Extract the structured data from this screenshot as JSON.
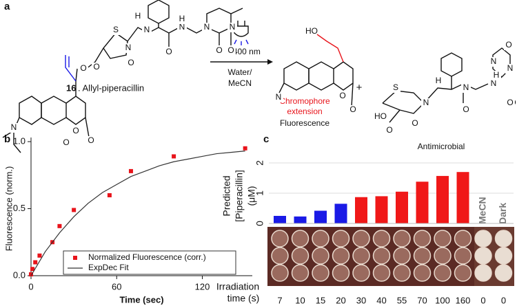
{
  "panels": [
    "a",
    "b",
    "c"
  ],
  "scheme": {
    "reactant_number": "16",
    "reactant_name": ". Allyl-piperacillin",
    "light": "λ = 400 nm",
    "solvent": [
      "Water/",
      "MeCN"
    ],
    "plus": "+",
    "product1_labels": [
      "Chromophore",
      "extension",
      "Fluorescence"
    ],
    "product2_label": "Antimicrobial",
    "reactant_atoms": [
      "S",
      "N",
      "O",
      "H",
      "N",
      "O",
      "N",
      "H",
      "O",
      "N",
      "N",
      "O",
      "O",
      "O",
      "O",
      "N",
      "O",
      "O"
    ],
    "product1_atoms": [
      "HO",
      "N",
      "O",
      "O"
    ],
    "product2_atoms": [
      "S",
      "N",
      "O",
      "HO",
      "O",
      "H",
      "N",
      "O",
      "N",
      "H",
      "O",
      "N",
      "N",
      "O",
      "O"
    ]
  },
  "chart_data": [
    {
      "type": "scatter",
      "xlabel": "Time (sec)",
      "ylabel": "Fluorescence (norm.)",
      "xlim": [
        0,
        155
      ],
      "ylim": [
        0,
        1
      ],
      "xticks": [
        0,
        60,
        120
      ],
      "yticks": [
        {
          "value": 0,
          "label": "0.0"
        },
        0.5,
        {
          "value": 1,
          "label": "1.0"
        }
      ],
      "legend": "lower right",
      "series": [
        {
          "name": "Normalized Fluorescence (corr.)",
          "color": "#e8141b",
          "type": "scatter",
          "x": [
            0,
            1,
            3,
            6,
            15,
            20,
            30,
            55,
            70,
            100,
            150
          ],
          "values": [
            0.01,
            0.05,
            0.1,
            0.15,
            0.25,
            0.37,
            0.49,
            0.6,
            0.78,
            0.89,
            0.95
          ]
        },
        {
          "name": "ExpDec Fit",
          "color": "#333333",
          "type": "line",
          "x": [
            0,
            10,
            20,
            30,
            40,
            50,
            60,
            70,
            80,
            90,
            100,
            110,
            120,
            130,
            140,
            150
          ],
          "values": [
            0,
            0.18,
            0.32,
            0.44,
            0.54,
            0.62,
            0.68,
            0.74,
            0.78,
            0.82,
            0.85,
            0.87,
            0.89,
            0.91,
            0.92,
            0.93
          ]
        }
      ]
    },
    {
      "type": "bar",
      "ylabel": [
        "Predicted",
        "[Piperacillin]",
        "(μM)"
      ],
      "xlabel": [
        "Irradiation",
        "time (s)"
      ],
      "categories": [
        "7",
        "10",
        "15",
        "20",
        "30",
        "40",
        "55",
        "70",
        "100",
        "160",
        "0",
        "0"
      ],
      "values": [
        0.25,
        0.23,
        0.42,
        0.65,
        0.87,
        0.9,
        1.05,
        1.38,
        1.57,
        1.7,
        null,
        null
      ],
      "colors": [
        "#1a1ae6",
        "#1a1ae6",
        "#1a1ae6",
        "#1a1ae6",
        "#f01818",
        "#f01818",
        "#f01818",
        "#f01818",
        "#f01818",
        "#f01818",
        null,
        null
      ],
      "controls": [
        null,
        null,
        null,
        null,
        null,
        null,
        null,
        null,
        null,
        null,
        "MeCN",
        "Dark"
      ],
      "ylim": [
        0,
        2
      ],
      "yticks": [
        0,
        1,
        2
      ],
      "grid": true
    }
  ]
}
